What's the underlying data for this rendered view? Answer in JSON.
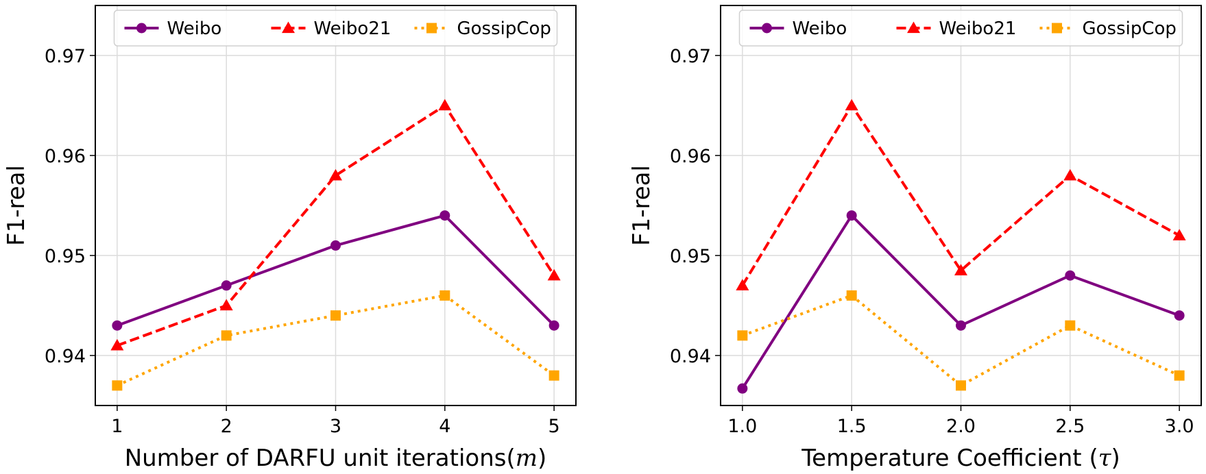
{
  "chart_data": [
    {
      "type": "line",
      "title": "",
      "xlabel": "Number of DARFU unit iterations",
      "xlabel_symbol": "m",
      "ylabel": "F1-real",
      "x": [
        1,
        2,
        3,
        4,
        5
      ],
      "x_tick_labels": [
        "1",
        "2",
        "3",
        "4",
        "5"
      ],
      "xlim": [
        0.8,
        5.2
      ],
      "ylim": [
        0.935,
        0.975
      ],
      "y_ticks": [
        0.94,
        0.95,
        0.96,
        0.97
      ],
      "y_tick_labels": [
        "0.94",
        "0.95",
        "0.96",
        "0.97"
      ],
      "grid": true,
      "legend_position": "top-center",
      "series": [
        {
          "name": "Weibo",
          "color": "#800080",
          "linestyle": "solid",
          "marker": "circle",
          "values": [
            0.943,
            0.947,
            0.951,
            0.954,
            0.943
          ]
        },
        {
          "name": "Weibo21",
          "color": "#ff0000",
          "linestyle": "dashed",
          "marker": "triangle",
          "values": [
            0.941,
            0.945,
            0.958,
            0.965,
            0.948
          ]
        },
        {
          "name": "GossipCop",
          "color": "#ffa500",
          "linestyle": "dotted",
          "marker": "square",
          "values": [
            0.937,
            0.942,
            0.944,
            0.946,
            0.938
          ]
        }
      ]
    },
    {
      "type": "line",
      "title": "",
      "xlabel": "Temperature Coefficient",
      "xlabel_symbol": "τ",
      "ylabel": "F1-real",
      "x": [
        1.0,
        1.5,
        2.0,
        2.5,
        3.0
      ],
      "x_tick_labels": [
        "1.0",
        "1.5",
        "2.0",
        "2.5",
        "3.0"
      ],
      "xlim": [
        0.9,
        3.1
      ],
      "ylim": [
        0.935,
        0.975
      ],
      "y_ticks": [
        0.94,
        0.95,
        0.96,
        0.97
      ],
      "y_tick_labels": [
        "0.94",
        "0.95",
        "0.96",
        "0.97"
      ],
      "grid": true,
      "legend_position": "top-center",
      "series": [
        {
          "name": "Weibo",
          "color": "#800080",
          "linestyle": "solid",
          "marker": "circle",
          "values": [
            0.9367,
            0.954,
            0.943,
            0.948,
            0.944
          ]
        },
        {
          "name": "Weibo21",
          "color": "#ff0000",
          "linestyle": "dashed",
          "marker": "triangle",
          "values": [
            0.947,
            0.965,
            0.9485,
            0.958,
            0.952
          ]
        },
        {
          "name": "GossipCop",
          "color": "#ffa500",
          "linestyle": "dotted",
          "marker": "square",
          "values": [
            0.942,
            0.946,
            0.937,
            0.943,
            0.938
          ]
        }
      ]
    }
  ]
}
